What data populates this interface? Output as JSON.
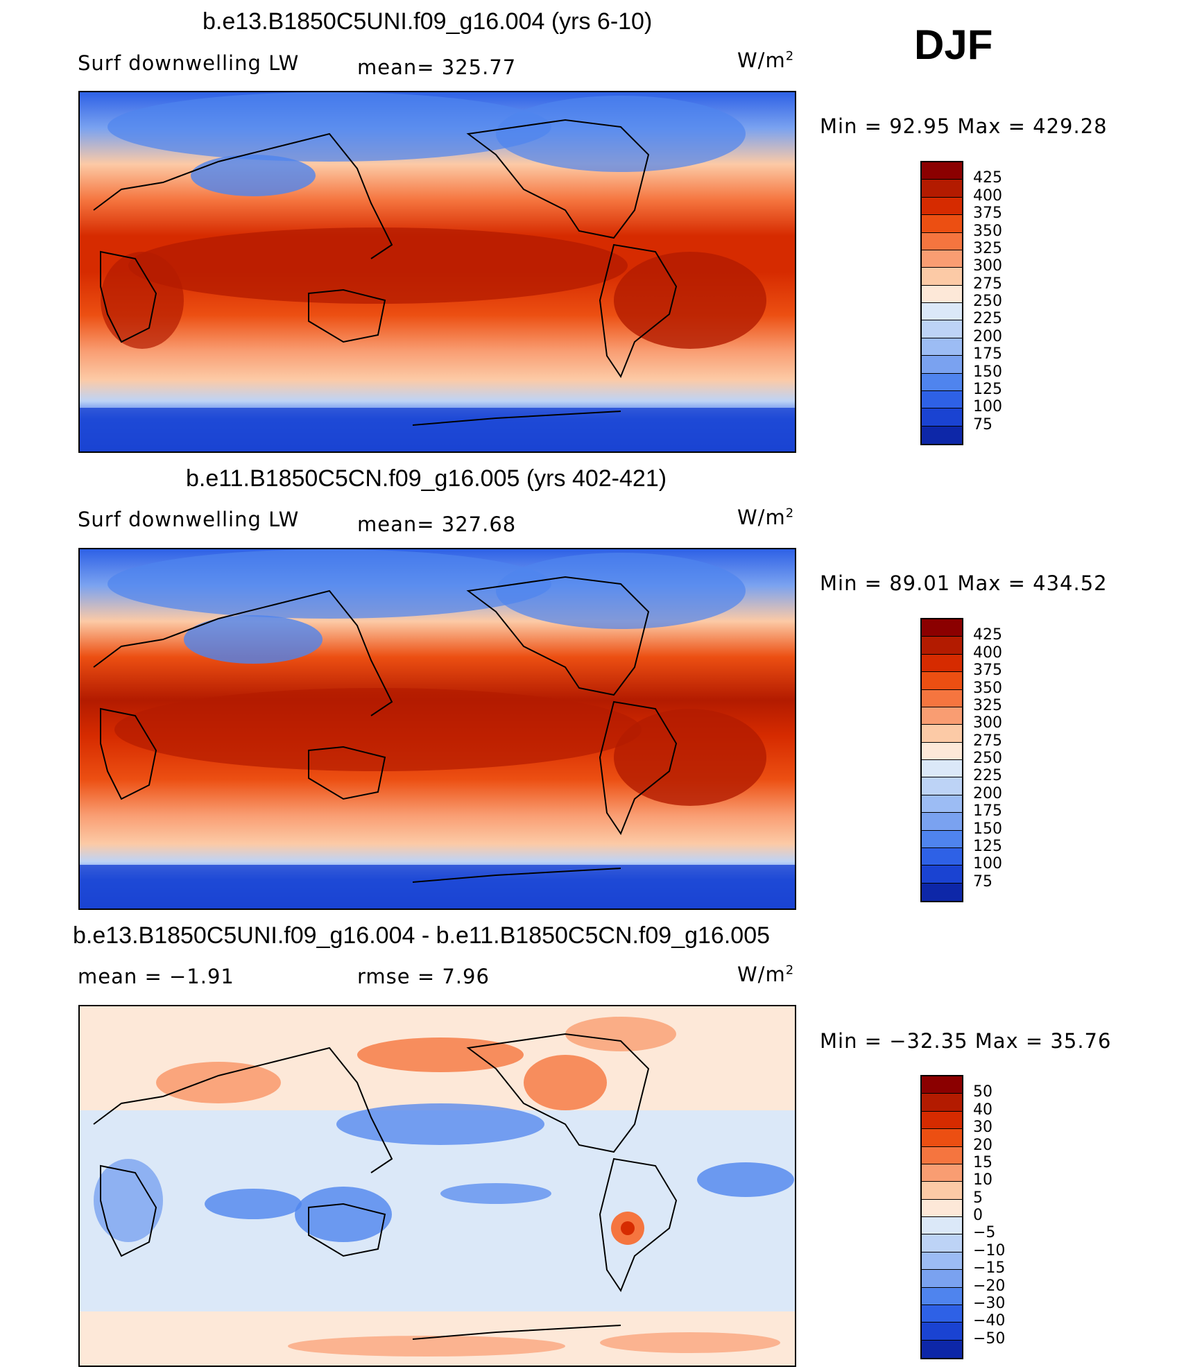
{
  "season": "DJF",
  "panels": [
    {
      "title": "b.e13.B1850C5UNI.f09_g16.004 (yrs 6-10)",
      "left_label": "Surf downwelling LW",
      "center_label": "mean= 325.77",
      "units_base": "W/m",
      "units_exp": "2",
      "minmax": "Min =   92.95 Max = 429.28",
      "colorbar": {
        "labels": [
          "425",
          "400",
          "375",
          "350",
          "325",
          "300",
          "275",
          "250",
          "225",
          "200",
          "175",
          "150",
          "125",
          "100",
          "75"
        ],
        "colors": [
          "#8b0000",
          "#b31b00",
          "#d62b00",
          "#ec4f12",
          "#f5753f",
          "#f99d72",
          "#fccaa6",
          "#fde8d8",
          "#dbe8f8",
          "#bdd3f6",
          "#9cbcf4",
          "#7aa2f0",
          "#4f84ee",
          "#2e61e6",
          "#1a43d2",
          "#0d27a8"
        ]
      },
      "chart_data": {
        "type": "heatmap",
        "title": "b.e13.B1850C5UNI.f09_g16.004 (yrs 6-10)",
        "field": "Surf downwelling LW",
        "units": "W/m2",
        "mean": 325.77,
        "min": 92.95,
        "max": 429.28,
        "contour_levels": [
          75,
          100,
          125,
          150,
          175,
          200,
          225,
          250,
          275,
          300,
          325,
          350,
          375,
          400,
          425
        ]
      }
    },
    {
      "title": "b.e11.B1850C5CN.f09_g16.005 (yrs 402-421)",
      "left_label": "Surf downwelling LW",
      "center_label": "mean= 327.68",
      "units_base": "W/m",
      "units_exp": "2",
      "minmax": "Min =   89.01 Max = 434.52",
      "colorbar": {
        "labels": [
          "425",
          "400",
          "375",
          "350",
          "325",
          "300",
          "275",
          "250",
          "225",
          "200",
          "175",
          "150",
          "125",
          "100",
          "75"
        ],
        "colors": [
          "#8b0000",
          "#b31b00",
          "#d62b00",
          "#ec4f12",
          "#f5753f",
          "#f99d72",
          "#fccaa6",
          "#fde8d8",
          "#dbe8f8",
          "#bdd3f6",
          "#9cbcf4",
          "#7aa2f0",
          "#4f84ee",
          "#2e61e6",
          "#1a43d2",
          "#0d27a8"
        ]
      },
      "chart_data": {
        "type": "heatmap",
        "title": "b.e11.B1850C5CN.f09_g16.005 (yrs 402-421)",
        "field": "Surf downwelling LW",
        "units": "W/m2",
        "mean": 327.68,
        "min": 89.01,
        "max": 434.52,
        "contour_levels": [
          75,
          100,
          125,
          150,
          175,
          200,
          225,
          250,
          275,
          300,
          325,
          350,
          375,
          400,
          425
        ]
      }
    },
    {
      "title": "b.e13.B1850C5UNI.f09_g16.004 - b.e11.B1850C5CN.f09_g16.005",
      "left_label": "mean =   −1.91",
      "center_label": "rmse =    7.96",
      "units_base": "W/m",
      "units_exp": "2",
      "minmax": "Min = −32.35 Max =  35.76",
      "colorbar": {
        "labels": [
          "50",
          "40",
          "30",
          "20",
          "15",
          "10",
          "5",
          "0",
          "−5",
          "−10",
          "−15",
          "−20",
          "−30",
          "−40",
          "−50"
        ],
        "colors": [
          "#8b0000",
          "#b31b00",
          "#d62b00",
          "#ec4f12",
          "#f5753f",
          "#f99d72",
          "#fccaa6",
          "#fde8d8",
          "#dbe8f8",
          "#bdd3f6",
          "#9cbcf4",
          "#7aa2f0",
          "#4f84ee",
          "#2e61e6",
          "#1a43d2",
          "#0d27a8"
        ]
      },
      "chart_data": {
        "type": "heatmap",
        "title": "b.e13.B1850C5UNI.f09_g16.004 - b.e11.B1850C5CN.f09_g16.005",
        "field": "difference",
        "units": "W/m2",
        "mean": -1.91,
        "rmse": 7.96,
        "min": -32.35,
        "max": 35.76,
        "contour_levels": [
          -50,
          -40,
          -30,
          -20,
          -15,
          -10,
          -5,
          0,
          5,
          10,
          15,
          20,
          30,
          40,
          50
        ]
      }
    }
  ]
}
